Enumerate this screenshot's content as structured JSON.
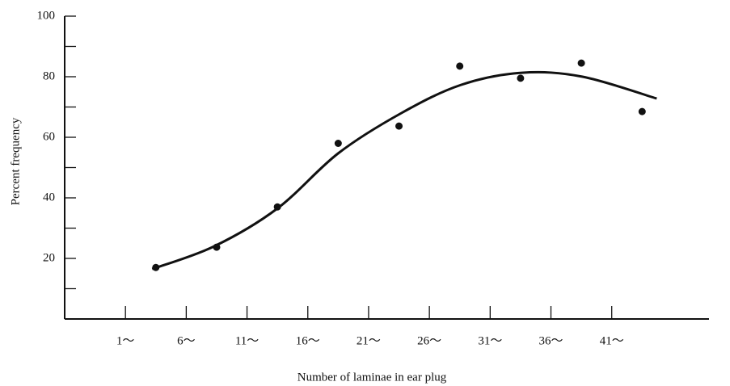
{
  "chart_data": {
    "type": "scatter",
    "xlabel": "Number of laminae in  ear plug",
    "ylabel": "Percent frequency",
    "xlim": [
      -4,
      49
    ],
    "ylim": [
      0,
      100
    ],
    "xticks": [
      {
        "value": 1,
        "label": "1～"
      },
      {
        "value": 6,
        "label": "6～"
      },
      {
        "value": 11,
        "label": "11～"
      },
      {
        "value": 16,
        "label": "16～"
      },
      {
        "value": 21,
        "label": "21～"
      },
      {
        "value": 26,
        "label": "26～"
      },
      {
        "value": 31,
        "label": "31～"
      },
      {
        "value": 36,
        "label": "36～"
      },
      {
        "value": 41,
        "label": "41～"
      }
    ],
    "yticks": [
      {
        "value": 10,
        "label": ""
      },
      20,
      {
        "value": 30,
        "label": ""
      },
      40,
      {
        "value": 50,
        "label": ""
      },
      60,
      {
        "value": 70,
        "label": ""
      },
      80,
      {
        "value": 90,
        "label": ""
      },
      100
    ],
    "series": [
      {
        "color": "#111111",
        "x": [
          3.5,
          8.5,
          13.5,
          18.5,
          23.5,
          28.5,
          33.5,
          38.5,
          43.5
        ],
        "values": [
          17,
          23.7,
          37,
          58,
          63.7,
          83.5,
          79.5,
          84.5,
          68.5
        ]
      },
      {
        "color": "#111111",
        "line": true,
        "x": [
          3.2,
          8.3,
          13.5,
          18.5,
          23.7,
          28.6,
          33.6,
          38.6,
          44.7
        ],
        "values": [
          16.5,
          24,
          36.5,
          54.7,
          68,
          77.3,
          81.3,
          80,
          72.8
        ]
      }
    ]
  }
}
